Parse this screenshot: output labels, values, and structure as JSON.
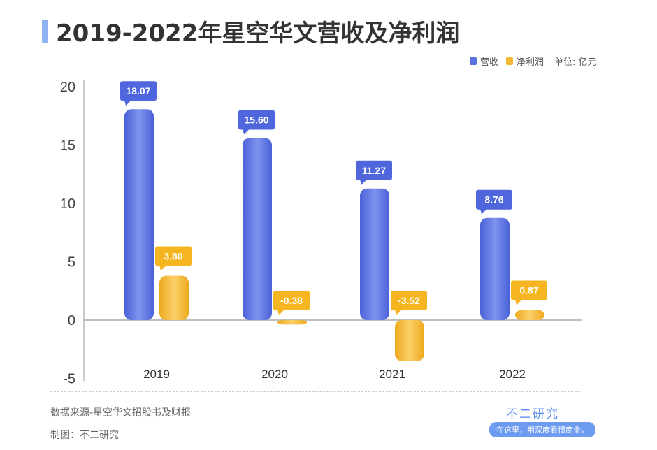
{
  "title": "2019-2022年星空华文营收及净利润",
  "legend": {
    "series": [
      "营收",
      "净利润"
    ],
    "unit": "单位: 亿元"
  },
  "footer": {
    "source": "数据来源-星空华文招股书及财报",
    "maker": "制图：不二研究",
    "brand": "不二研究",
    "slogan": "在这里，用深度看懂商业。"
  },
  "colors": {
    "revenue": "#5b73e0",
    "profit": "#f5b730",
    "title_accent": "#8fb2f0"
  },
  "chart_data": {
    "type": "bar",
    "title": "2019-2022年星空华文营收及净利润",
    "categories": [
      "2019",
      "2020",
      "2021",
      "2022"
    ],
    "series": [
      {
        "name": "营收",
        "values": [
          18.07,
          15.6,
          11.27,
          8.76
        ],
        "labels": [
          "18.07",
          "15.60",
          "11.27",
          "8.76"
        ]
      },
      {
        "name": "净利润",
        "values": [
          3.8,
          -0.38,
          -3.52,
          0.87
        ],
        "labels": [
          "3.80",
          "-0.38",
          "-3.52",
          "0.87"
        ]
      }
    ],
    "ylim": [
      -5,
      20
    ],
    "yticks": [
      "-5",
      "0",
      "5",
      "10",
      "15",
      "20"
    ],
    "grid": false,
    "legend_position": "top-right",
    "unit": "单位: 亿元"
  }
}
